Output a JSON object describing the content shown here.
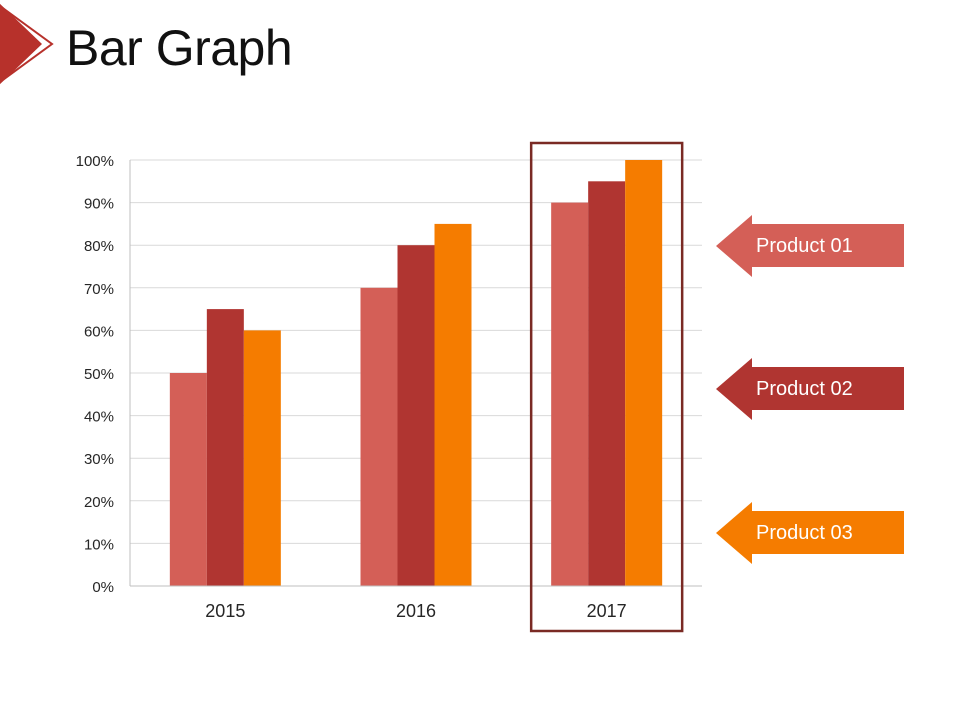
{
  "page": {
    "title": "Bar Graph"
  },
  "colors": {
    "product_01": "#d45f57",
    "product_02": "#b03531",
    "product_03": "#f57c00",
    "highlight": "#7a2a24",
    "title_accent": "#b7312b"
  },
  "chart_data": {
    "type": "bar",
    "title": "Bar Graph",
    "xlabel": "",
    "ylabel": "",
    "categories": [
      "2015",
      "2016",
      "2017"
    ],
    "series": [
      {
        "name": "Product 01",
        "values": [
          50,
          70,
          90
        ]
      },
      {
        "name": "Product 02",
        "values": [
          65,
          80,
          95
        ]
      },
      {
        "name": "Product 03",
        "values": [
          60,
          85,
          100
        ]
      }
    ],
    "ylim": [
      0,
      100
    ],
    "yticks": [
      "0%",
      "10%",
      "20%",
      "30%",
      "40%",
      "50%",
      "60%",
      "70%",
      "80%",
      "90%",
      "100%"
    ],
    "grid": true,
    "legend_position": "right",
    "highlighted_category": "2017"
  },
  "legend": {
    "items": [
      {
        "label": "Product 01"
      },
      {
        "label": "Product 02"
      },
      {
        "label": "Product 03"
      }
    ]
  }
}
